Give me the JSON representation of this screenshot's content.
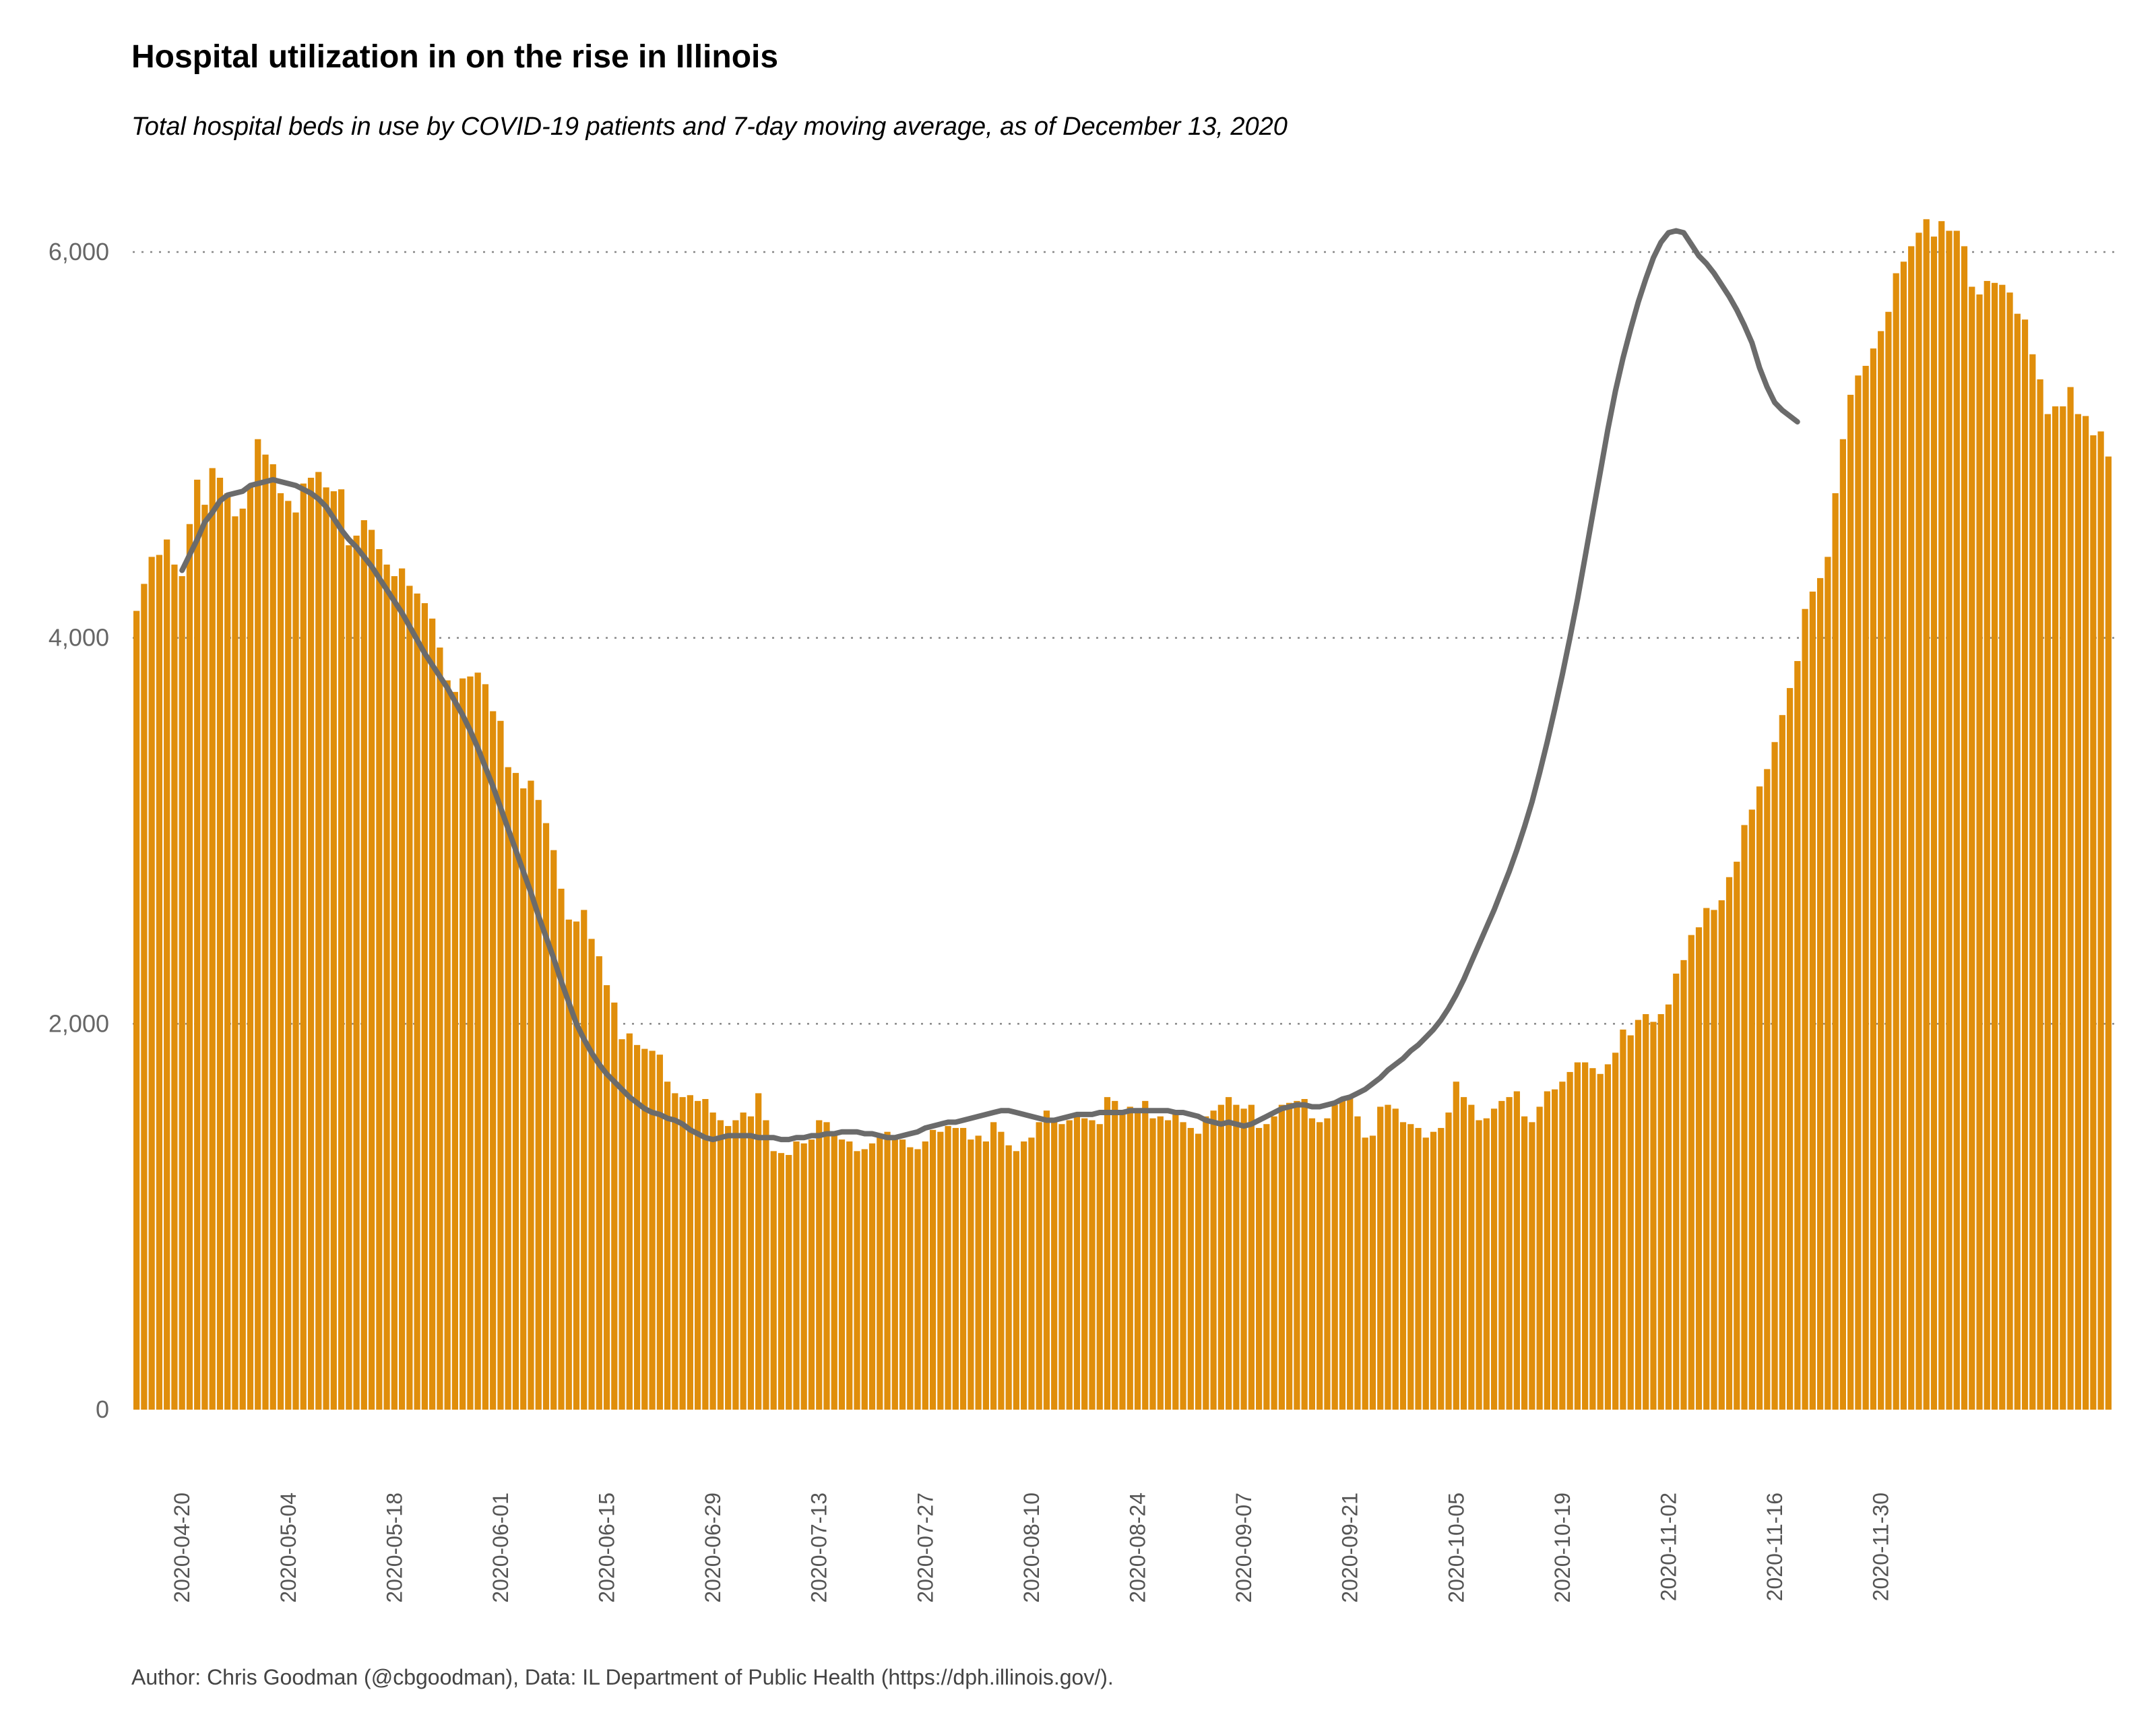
{
  "chart_data": {
    "type": "bar",
    "title": "Hospital utilization in on the rise in Illinois",
    "subtitle": "Total hospital beds in use by COVID-19 patients and 7-day moving average, as of December 13, 2020",
    "caption": "Author: Chris Goodman (@cbgoodman), Data: IL Department of Public Health (https://dph.illinois.gov/).",
    "xlabel": "",
    "ylabel": "",
    "ylim": [
      0,
      6300
    ],
    "yticks": [
      0,
      2000,
      4000,
      6000
    ],
    "ytick_labels": [
      "0",
      "2,000",
      "4,000",
      "6,000"
    ],
    "xtick_labels": [
      "2020-04-20",
      "2020-05-04",
      "2020-05-18",
      "2020-06-01",
      "2020-06-15",
      "2020-06-29",
      "2020-07-13",
      "2020-07-27",
      "2020-08-10",
      "2020-08-24",
      "2020-09-07",
      "2020-09-21",
      "2020-10-05",
      "2020-10-19",
      "2020-11-02",
      "2020-11-16",
      "2020-11-30"
    ],
    "xtick_day_index": [
      6,
      20,
      34,
      48,
      62,
      76,
      90,
      104,
      118,
      132,
      146,
      160,
      174,
      188,
      202,
      216,
      230
    ],
    "date_range": [
      "2020-04-14",
      "2020-12-13"
    ],
    "gridlines": "horizontal dotted",
    "colors": {
      "bars": "#E08E0B",
      "moving_average": "#6b6b6b",
      "grid": "#888888"
    },
    "series": [
      {
        "name": "Total hospital beds in use by COVID-19 patients",
        "type": "bar",
        "values": [
          4140,
          4280,
          4420,
          4430,
          4510,
          4380,
          4320,
          4590,
          4820,
          4690,
          4880,
          4830,
          4750,
          4630,
          4670,
          4790,
          5030,
          4950,
          4900,
          4750,
          4710,
          4650,
          4800,
          4830,
          4860,
          4780,
          4760,
          4770,
          4480,
          4530,
          4610,
          4560,
          4460,
          4380,
          4320,
          4360,
          4270,
          4230,
          4180,
          4100,
          3950,
          3780,
          3720,
          3790,
          3800,
          3820,
          3760,
          3620,
          3570,
          3330,
          3300,
          3220,
          3260,
          3160,
          3040,
          2900,
          2700,
          2540,
          2530,
          2590,
          2440,
          2350,
          2200,
          2110,
          1920,
          1950,
          1890,
          1870,
          1860,
          1840,
          1700,
          1640,
          1620,
          1630,
          1600,
          1610,
          1540,
          1500,
          1470,
          1500,
          1540,
          1520,
          1640,
          1500,
          1340,
          1330,
          1320,
          1390,
          1380,
          1400,
          1500,
          1490,
          1430,
          1400,
          1390,
          1340,
          1350,
          1380,
          1420,
          1440,
          1410,
          1400,
          1360,
          1350,
          1390,
          1450,
          1440,
          1470,
          1460,
          1460,
          1400,
          1420,
          1390,
          1490,
          1440,
          1370,
          1340,
          1390,
          1410,
          1490,
          1550,
          1510,
          1480,
          1500,
          1530,
          1510,
          1500,
          1480,
          1620,
          1600,
          1540,
          1570,
          1560,
          1600,
          1510,
          1520,
          1500,
          1530,
          1490,
          1460,
          1430,
          1520,
          1550,
          1580,
          1620,
          1580,
          1560,
          1580,
          1460,
          1480,
          1520,
          1580,
          1590,
          1600,
          1610,
          1510,
          1490,
          1510,
          1580,
          1610,
          1620,
          1520,
          1410,
          1420,
          1570,
          1580,
          1560,
          1490,
          1480,
          1460,
          1410,
          1440,
          1460,
          1540,
          1700,
          1620,
          1580,
          1500,
          1510,
          1560,
          1600,
          1620,
          1650,
          1520,
          1490,
          1570,
          1650,
          1660,
          1700,
          1750,
          1800,
          1800,
          1770,
          1740,
          1790,
          1850,
          1970,
          1940,
          2020,
          2050,
          2010,
          2050,
          2100,
          2260,
          2330,
          2460,
          2500,
          2600,
          2590,
          2640,
          2760,
          2840,
          3030,
          3110,
          3230,
          3320,
          3460,
          3600,
          3740,
          3880,
          4150,
          4240,
          4310,
          4420,
          4750,
          5030,
          5260,
          5360,
          5410,
          5500,
          5590,
          5690,
          5890,
          5950,
          6030,
          6100,
          6170,
          6080,
          6160,
          6110,
          6110,
          6030,
          5820,
          5780,
          5850,
          5840,
          5830,
          5790,
          5680,
          5650,
          5470,
          5340,
          5160,
          5200,
          5200,
          5300,
          5160,
          5150,
          5050,
          5070,
          4940
        ]
      },
      {
        "name": "7-day moving average",
        "type": "line",
        "start_day_index": 6,
        "values": [
          4350,
          4430,
          4510,
          4600,
          4650,
          4710,
          4740,
          4750,
          4760,
          4790,
          4800,
          4810,
          4820,
          4810,
          4800,
          4790,
          4770,
          4750,
          4720,
          4680,
          4620,
          4560,
          4510,
          4470,
          4420,
          4370,
          4310,
          4250,
          4190,
          4130,
          4060,
          3990,
          3920,
          3860,
          3800,
          3740,
          3670,
          3600,
          3520,
          3430,
          3330,
          3230,
          3120,
          3010,
          2900,
          2790,
          2680,
          2560,
          2450,
          2340,
          2220,
          2110,
          2000,
          1920,
          1850,
          1790,
          1740,
          1700,
          1660,
          1620,
          1590,
          1560,
          1540,
          1530,
          1510,
          1500,
          1480,
          1450,
          1430,
          1410,
          1400,
          1410,
          1420,
          1420,
          1420,
          1420,
          1410,
          1410,
          1410,
          1400,
          1400,
          1410,
          1410,
          1420,
          1420,
          1430,
          1430,
          1440,
          1440,
          1440,
          1430,
          1430,
          1420,
          1410,
          1410,
          1420,
          1430,
          1440,
          1460,
          1470,
          1480,
          1490,
          1490,
          1500,
          1510,
          1520,
          1530,
          1540,
          1550,
          1550,
          1540,
          1530,
          1520,
          1510,
          1500,
          1500,
          1510,
          1520,
          1530,
          1530,
          1530,
          1540,
          1540,
          1540,
          1540,
          1550,
          1550,
          1550,
          1550,
          1550,
          1550,
          1540,
          1540,
          1530,
          1520,
          1500,
          1490,
          1480,
          1490,
          1480,
          1470,
          1480,
          1500,
          1520,
          1540,
          1560,
          1570,
          1580,
          1580,
          1570,
          1570,
          1580,
          1590,
          1610,
          1620,
          1640,
          1660,
          1690,
          1720,
          1760,
          1790,
          1820,
          1860,
          1890,
          1930,
          1970,
          2020,
          2080,
          2150,
          2230,
          2320,
          2410,
          2500,
          2590,
          2690,
          2790,
          2900,
          3020,
          3150,
          3300,
          3460,
          3630,
          3810,
          4000,
          4200,
          4420,
          4640,
          4860,
          5080,
          5280,
          5450,
          5600,
          5740,
          5860,
          5970,
          6050,
          6100,
          6110,
          6100,
          6040,
          5980,
          5940,
          5890,
          5830,
          5770,
          5700,
          5620,
          5530,
          5400,
          5300,
          5220,
          5180,
          5150,
          5120
        ]
      }
    ]
  }
}
